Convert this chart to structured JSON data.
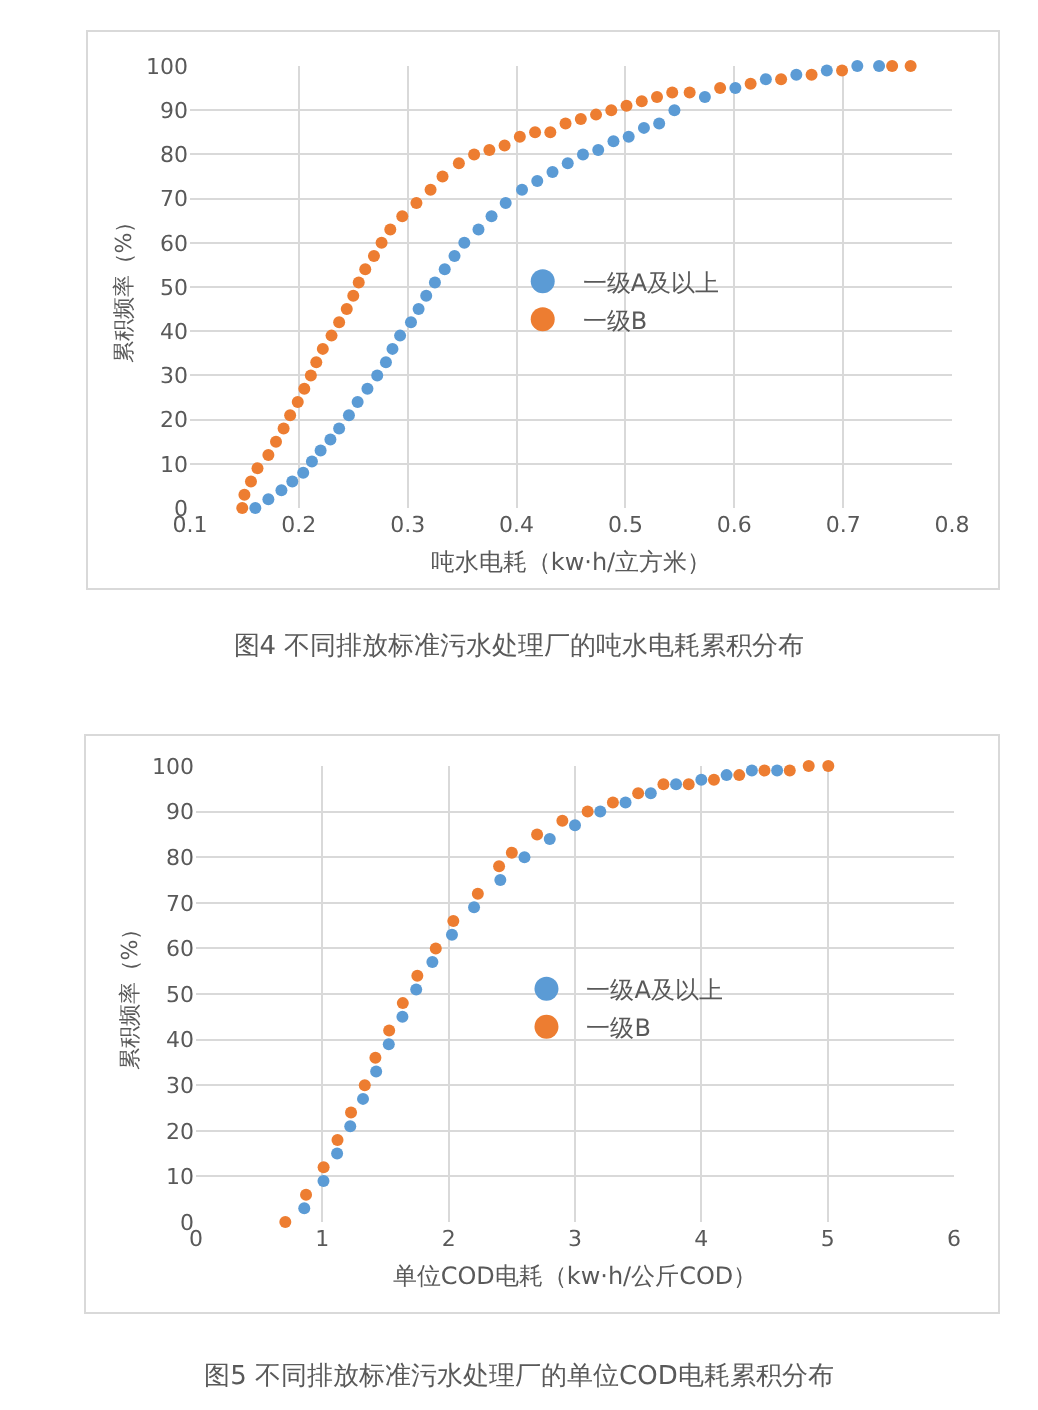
{
  "chart_data": [
    {
      "type": "scatter",
      "xlabel": "吨水电耗（kw·h/立方米）",
      "ylabel": "累积频率（%）",
      "annotations": [
        "图4  不同排放标准污水处理厂的吨水电耗累积分布"
      ],
      "series": [
        {
          "name": "一级A及以上",
          "color": "#5b9bd5",
          "x": [
            0.16,
            0.172,
            0.184,
            0.194,
            0.204,
            0.212,
            0.22,
            0.229,
            0.237,
            0.246,
            0.254,
            0.263,
            0.272,
            0.28,
            0.286,
            0.293,
            0.303,
            0.31,
            0.317,
            0.325,
            0.334,
            0.343,
            0.352,
            0.365,
            0.377,
            0.39,
            0.405,
            0.419,
            0.433,
            0.447,
            0.461,
            0.475,
            0.489,
            0.503,
            0.517,
            0.531,
            0.545,
            0.573,
            0.601,
            0.629,
            0.657,
            0.685,
            0.713,
            0.733
          ],
          "values": [
            0,
            2,
            4,
            6,
            8,
            10.5,
            13,
            15.5,
            18,
            21,
            24,
            27,
            30,
            33,
            36,
            39,
            42,
            45,
            48,
            51,
            54,
            57,
            60,
            63,
            66,
            69,
            72,
            74,
            76,
            78,
            80,
            81,
            83,
            84,
            86,
            87,
            90,
            93,
            95,
            97,
            98,
            99,
            100,
            100
          ]
        },
        {
          "name": "一级B",
          "color": "#ed7d31",
          "x": [
            0.148,
            0.15,
            0.156,
            0.162,
            0.172,
            0.179,
            0.186,
            0.192,
            0.199,
            0.205,
            0.211,
            0.216,
            0.222,
            0.23,
            0.237,
            0.244,
            0.25,
            0.255,
            0.261,
            0.269,
            0.276,
            0.284,
            0.295,
            0.308,
            0.321,
            0.332,
            0.347,
            0.361,
            0.375,
            0.389,
            0.403,
            0.417,
            0.431,
            0.445,
            0.459,
            0.473,
            0.487,
            0.501,
            0.515,
            0.529,
            0.543,
            0.559,
            0.587,
            0.615,
            0.643,
            0.671,
            0.699,
            0.745,
            0.762
          ],
          "values": [
            0,
            3,
            6,
            9,
            12,
            15,
            18,
            21,
            24,
            27,
            30,
            33,
            36,
            39,
            42,
            45,
            48,
            51,
            54,
            57,
            60,
            63,
            66,
            69,
            72,
            75,
            78,
            80,
            81,
            82,
            84,
            85,
            85,
            87,
            88,
            89,
            90,
            91,
            92,
            93,
            94,
            94,
            95,
            96,
            97,
            98,
            99,
            100,
            100
          ]
        }
      ],
      "xlim": [
        0.1,
        0.8
      ],
      "xticks": [
        0.1,
        0.2,
        0.3,
        0.4,
        0.5,
        0.6,
        0.7,
        0.8
      ],
      "ylim": [
        0,
        100
      ],
      "yticks": [
        0,
        10,
        20,
        30,
        40,
        50,
        60,
        70,
        80,
        90,
        100
      ],
      "grid": true,
      "legend": "center",
      "marker": "circle"
    },
    {
      "type": "scatter",
      "xlabel": "单位COD电耗（kw·h/公斤COD）",
      "ylabel": "累积频率（%）",
      "annotations": [
        "图5  不同排放标准污水处理厂的单位COD电耗累积分布"
      ],
      "series": [
        {
          "name": "一级A及以上",
          "color": "#5b9bd5",
          "x": [
            0.857,
            1.009,
            1.117,
            1.221,
            1.322,
            1.426,
            1.526,
            1.634,
            1.743,
            1.871,
            2.026,
            2.201,
            2.409,
            2.6,
            2.8,
            3.0,
            3.2,
            3.4,
            3.6,
            3.8,
            4.0,
            4.2,
            4.4,
            4.6
          ],
          "values": [
            3,
            9,
            15,
            21,
            27,
            33,
            39,
            45,
            51,
            57,
            63,
            69,
            75,
            80,
            84,
            87,
            90,
            92,
            94,
            96,
            97,
            98,
            99,
            99
          ]
        },
        {
          "name": "一级B",
          "color": "#ed7d31",
          "x": [
            0.707,
            0.871,
            1.01,
            1.12,
            1.227,
            1.336,
            1.42,
            1.529,
            1.637,
            1.752,
            1.898,
            2.037,
            2.231,
            2.399,
            2.5,
            2.7,
            2.9,
            3.1,
            3.3,
            3.5,
            3.7,
            3.9,
            4.1,
            4.3,
            4.5,
            4.7,
            4.85,
            5.005
          ],
          "values": [
            0,
            6,
            12,
            18,
            24,
            30,
            36,
            42,
            48,
            54,
            60,
            66,
            72,
            78,
            81,
            85,
            88,
            90,
            92,
            94,
            96,
            96,
            97,
            98,
            99,
            99,
            100,
            100
          ]
        }
      ],
      "xlim": [
        0,
        6
      ],
      "xticks": [
        0,
        1,
        2,
        3,
        4,
        5,
        6
      ],
      "ylim": [
        0,
        100
      ],
      "yticks": [
        0,
        10,
        20,
        30,
        40,
        50,
        60,
        70,
        80,
        90,
        100
      ],
      "grid": true,
      "legend": "center",
      "marker": "circle"
    }
  ]
}
